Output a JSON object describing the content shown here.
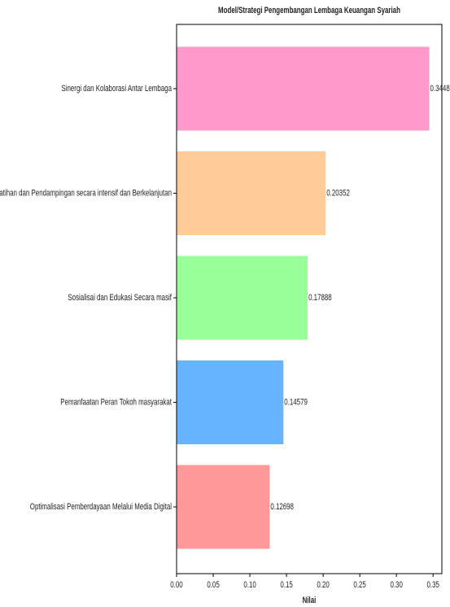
{
  "chart_data": {
    "type": "barh",
    "title": "Model/Strategi Pengembangan Lembaga Keuangan Syariah",
    "xlabel": "Nilai",
    "categories": [
      "Sinergi dan Kolaborasi Antar Lembaga",
      "Pelatihan dan Pendampingan secara intensif dan Berkelanjutan",
      "Sosialisai dan Edukasi Secara masif",
      "Pemanfaatan Peran Tokoh masyarakat",
      "Optimalisasi Pemberdayaan Melalui Media Digital"
    ],
    "values": [
      0.34483,
      0.20352,
      0.17888,
      0.14579,
      0.12698
    ],
    "colors": [
      "#ff99cc",
      "#ffcc99",
      "#99ff99",
      "#66b3ff",
      "#ff9999"
    ],
    "xlim": [
      0,
      0.362
    ],
    "xticks": [
      {
        "value": 0,
        "label": "0.00"
      },
      0.05,
      {
        "value": 0.1,
        "label": "0.10"
      },
      0.15,
      {
        "value": 0.2,
        "label": "0.20"
      },
      0.25,
      {
        "value": 0.3,
        "label": "0.30"
      },
      0.35
    ]
  }
}
